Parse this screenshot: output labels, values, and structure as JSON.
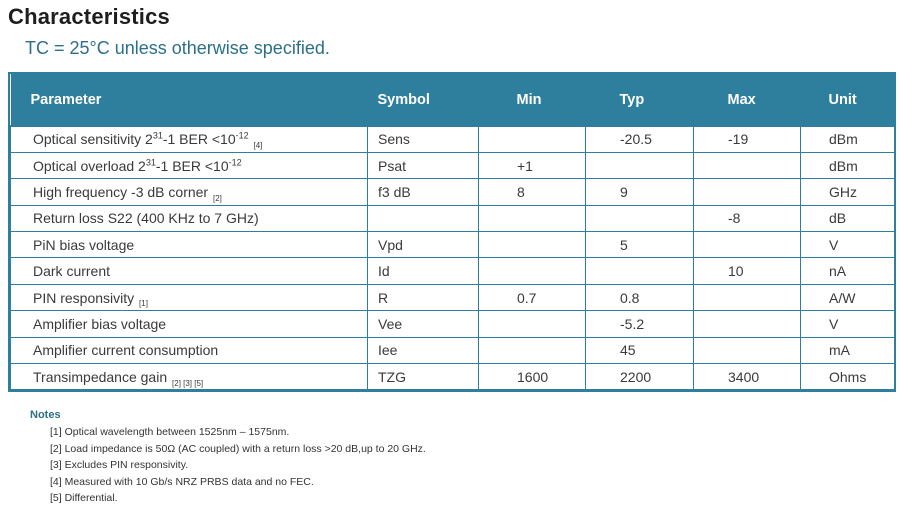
{
  "heading": {
    "title": "Characteristics",
    "subtitle": "TC = 25°C unless otherwise specified."
  },
  "table": {
    "columns": [
      "Parameter",
      "Symbol",
      "Min",
      "Typ",
      "Max",
      "Unit"
    ],
    "rows": [
      {
        "param": "Optical sensitivity 2",
        "sup": "31",
        "mid": "-1 BER <10",
        "sup2": "-12",
        "refs": "[4]",
        "symbol": "Sens",
        "min": "",
        "typ": "-20.5",
        "max": "-19",
        "unit": "dBm"
      },
      {
        "param": "Optical overload 2",
        "sup": "31",
        "mid": "-1 BER <10",
        "sup2": "-12",
        "refs": "",
        "symbol": "Psat",
        "min": "+1",
        "typ": "",
        "max": "",
        "unit": "dBm"
      },
      {
        "param": "High frequency -3 dB corner",
        "sup": "",
        "mid": "",
        "sup2": "",
        "refs": "[2]",
        "symbol": "f3 dB",
        "min": "8",
        "typ": "9",
        "max": "",
        "unit": "GHz"
      },
      {
        "param": "Return loss S22 (400 KHz to 7 GHz)",
        "sup": "",
        "mid": "",
        "sup2": "",
        "refs": "",
        "symbol": "",
        "min": "",
        "typ": "",
        "max": "-8",
        "unit": "dB"
      },
      {
        "param": "PiN bias voltage",
        "sup": "",
        "mid": "",
        "sup2": "",
        "refs": "",
        "symbol": "Vpd",
        "min": "",
        "typ": "5",
        "max": "",
        "unit": "V"
      },
      {
        "param": "Dark current",
        "sup": "",
        "mid": "",
        "sup2": "",
        "refs": "",
        "symbol": "Id",
        "min": "",
        "typ": "",
        "max": "10",
        "unit": "nA"
      },
      {
        "param": "PIN responsivity",
        "sup": "",
        "mid": "",
        "sup2": "",
        "refs": "[1]",
        "symbol": "R",
        "min": "0.7",
        "typ": "0.8",
        "max": "",
        "unit": "A/W"
      },
      {
        "param": "Amplifier bias voltage",
        "sup": "",
        "mid": "",
        "sup2": "",
        "refs": "",
        "symbol": "Vee",
        "min": "",
        "typ": "-5.2",
        "max": "",
        "unit": "V"
      },
      {
        "param": "Amplifier current consumption",
        "sup": "",
        "mid": "",
        "sup2": "",
        "refs": "",
        "symbol": "Iee",
        "min": "",
        "typ": "45",
        "max": "",
        "unit": "mA"
      },
      {
        "param": "Transimpedance gain",
        "sup": "",
        "mid": "",
        "sup2": "",
        "refs": "[2] [3] [5]",
        "symbol": "TZG",
        "min": "1600",
        "typ": "2200",
        "max": "3400",
        "unit": "Ohms"
      }
    ]
  },
  "notes": {
    "title": "Notes",
    "items": [
      "[1] Optical wavelength between 1525nm – 1575nm.",
      "[2] Load impedance is 50Ω (AC coupled) with a return loss >20 dB,up to 20 GHz.",
      "[3] Excludes PIN responsivity.",
      "[4] Measured with 10 Gb/s NRZ PRBS data and no FEC.",
      "[5] Differential."
    ]
  }
}
